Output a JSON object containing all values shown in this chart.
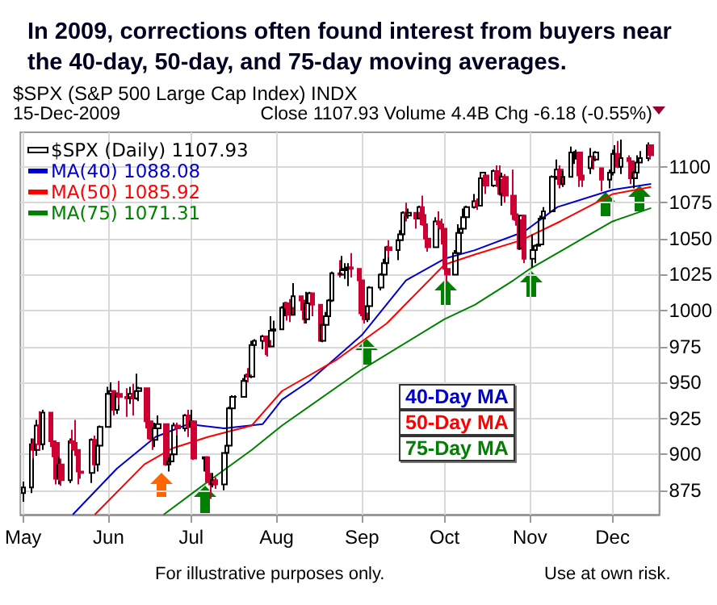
{
  "chart_data": {
    "type": "candlestick",
    "title": "In 2009, corrections often found interest from buyers near the 40-day, 50-day, and 75-day moving averages.",
    "subtitle": "$SPX (S&P 500 Large Cap Index) INDX",
    "annotations": [
      "15-Dec-2009",
      "Close 1107.93  Volume 4.4B  Chg -6.18 (-0.55%)",
      "40-Day MA",
      "50-Day MA",
      "75-Day MA",
      "For illustrative purposes only.",
      "Use at own risk."
    ],
    "xlim": [
      "2009-04-30",
      "2009-12-18"
    ],
    "xticks": [
      {
        "value": "2009-05-01",
        "label": "May"
      },
      {
        "value": "2009-06-01",
        "label": "Jun"
      },
      {
        "value": "2009-07-01",
        "label": "Jul"
      },
      {
        "value": "2009-08-01",
        "label": "Aug"
      },
      {
        "value": "2009-09-01",
        "label": "Sep"
      },
      {
        "value": "2009-10-01",
        "label": "Oct"
      },
      {
        "value": "2009-11-01",
        "label": "Nov"
      },
      {
        "value": "2009-12-01",
        "label": "Dec"
      }
    ],
    "ylim": [
      858,
      1124
    ],
    "yticks": [
      875,
      900,
      925,
      950,
      975,
      1000,
      1025,
      1050,
      1075,
      1100
    ],
    "grid": true,
    "legend": "top left",
    "marker": "none",
    "line_style": "solid",
    "series": [
      {
        "name": "$SPX (Daily) 1107.93",
        "colors": [
          "#000000",
          "#000000",
          "#cc0033",
          "#000000",
          "#cc0033",
          "#000000",
          "#cc0033",
          "#cc0033",
          "#cc0033",
          "#000000",
          "#cc0033",
          "#000000",
          "#cc0033",
          "#cc0033",
          "#cc0033",
          "#cc0033",
          "#000000",
          "#cc0033",
          "#000000",
          "#000000",
          "#000000",
          "#000000",
          "#cc0033",
          "#000000",
          "#cc0033",
          "#cc0033",
          "#000000",
          "#cc0033",
          "#000000",
          "#000000",
          "#cc0033",
          "#cc0033",
          "#cc0033",
          "#000000",
          "#000000",
          "#cc0033",
          "#000000",
          "#000000",
          "#000000",
          "#cc0033",
          "#000000",
          "#cc0033",
          "#000000",
          "#cc0033",
          "#000000",
          "#cc0033",
          "#cc0033",
          "#000000",
          "#cc0033",
          "#000000",
          "#000000",
          "#000000",
          "#000000",
          "#000000",
          "#000000",
          "#000000",
          "#cc0033",
          "#000000",
          "#000000",
          "#000000",
          "#cc0033",
          "#cc0033",
          "#000000",
          "#000000",
          "#000000",
          "#000000",
          "#cc0033",
          "#cc0033",
          "#000000",
          "#cc0033",
          "#cc0033",
          "#000000",
          "#000000",
          "#cc0033",
          "#cc0033",
          "#000000",
          "#000000",
          "#000000",
          "#000000",
          "#cc0033",
          "#000000",
          "#000000",
          "#000000",
          "#cc0033",
          "#cc0033",
          "#cc0033",
          "#cc0033",
          "#000000",
          "#000000",
          "#000000",
          "#000000",
          "#000000",
          "#cc0033",
          "#000000",
          "#000000",
          "#000000",
          "#cc0033",
          "#000000",
          "#cc0033",
          "#000000",
          "#cc0033",
          "#cc0033",
          "#cc0033",
          "#000000",
          "#cc0033",
          "#cc0033",
          "#cc0033",
          "#cc0033",
          "#000000",
          "#000000",
          "#000000",
          "#000000",
          "#000000",
          "#000000",
          "#cc0033",
          "#000000",
          "#000000",
          "#cc0033",
          "#000000",
          "#cc0033",
          "#cc0033",
          "#000000",
          "#cc0033",
          "#cc0033",
          "#cc0033",
          "#cc0033",
          "#000000",
          "#cc0033",
          "#000000",
          "#000000",
          "#000000",
          "#000000",
          "#000000",
          "#000000",
          "#000000",
          "#000000",
          "#cc0033",
          "#000000",
          "#000000",
          "#000000",
          "#000000",
          "#cc0033",
          "#cc0033",
          "#000000",
          "#cc0033",
          "#000000",
          "#cc0033",
          "#000000",
          "#000000",
          "#000000",
          "#cc0033",
          "#000000",
          "#cc0033",
          "#cc0033",
          "#000000",
          "#000000",
          "#000000",
          "#000000",
          "#cc0033"
        ],
        "x": [
          "2009-05-01",
          "2009-05-04",
          "2009-05-05",
          "2009-05-06",
          "2009-05-07",
          "2009-05-08",
          "2009-05-11",
          "2009-05-12",
          "2009-05-13",
          "2009-05-14",
          "2009-05-15",
          "2009-05-18",
          "2009-05-19",
          "2009-05-20",
          "2009-05-21",
          "2009-05-22",
          "2009-05-26",
          "2009-05-27",
          "2009-05-28",
          "2009-05-29",
          "2009-06-01",
          "2009-06-02",
          "2009-06-03",
          "2009-06-04",
          "2009-06-05",
          "2009-06-08",
          "2009-06-09",
          "2009-06-10",
          "2009-06-11",
          "2009-06-12",
          "2009-06-15",
          "2009-06-16",
          "2009-06-17",
          "2009-06-18",
          "2009-06-19",
          "2009-06-22",
          "2009-06-23",
          "2009-06-24",
          "2009-06-25",
          "2009-06-26",
          "2009-06-29",
          "2009-06-30",
          "2009-07-01",
          "2009-07-02",
          "2009-07-06",
          "2009-07-07",
          "2009-07-08",
          "2009-07-09",
          "2009-07-10",
          "2009-07-13",
          "2009-07-14",
          "2009-07-15",
          "2009-07-16",
          "2009-07-17",
          "2009-07-20",
          "2009-07-21",
          "2009-07-22",
          "2009-07-23",
          "2009-07-24",
          "2009-07-27",
          "2009-07-28",
          "2009-07-29",
          "2009-07-30",
          "2009-07-31",
          "2009-08-03",
          "2009-08-04",
          "2009-08-05",
          "2009-08-06",
          "2009-08-07",
          "2009-08-10",
          "2009-08-11",
          "2009-08-12",
          "2009-08-13",
          "2009-08-14",
          "2009-08-17",
          "2009-08-18",
          "2009-08-19",
          "2009-08-20",
          "2009-08-21",
          "2009-08-24",
          "2009-08-25",
          "2009-08-26",
          "2009-08-27",
          "2009-08-28",
          "2009-08-31",
          "2009-09-01",
          "2009-09-02",
          "2009-09-03",
          "2009-09-04",
          "2009-09-08",
          "2009-09-09",
          "2009-09-10",
          "2009-09-11",
          "2009-09-14",
          "2009-09-15",
          "2009-09-16",
          "2009-09-17",
          "2009-09-18",
          "2009-09-21",
          "2009-09-22",
          "2009-09-23",
          "2009-09-24",
          "2009-09-25",
          "2009-09-28",
          "2009-09-29",
          "2009-09-30",
          "2009-10-01",
          "2009-10-02",
          "2009-10-05",
          "2009-10-06",
          "2009-10-07",
          "2009-10-08",
          "2009-10-09",
          "2009-10-12",
          "2009-10-13",
          "2009-10-14",
          "2009-10-15",
          "2009-10-16",
          "2009-10-19",
          "2009-10-20",
          "2009-10-21",
          "2009-10-22",
          "2009-10-23",
          "2009-10-26",
          "2009-10-27",
          "2009-10-28",
          "2009-10-29",
          "2009-10-30",
          "2009-11-02",
          "2009-11-03",
          "2009-11-04",
          "2009-11-05",
          "2009-11-06",
          "2009-11-09",
          "2009-11-10",
          "2009-11-11",
          "2009-11-12",
          "2009-11-13",
          "2009-11-16",
          "2009-11-17",
          "2009-11-18",
          "2009-11-19",
          "2009-11-20",
          "2009-11-23",
          "2009-11-24",
          "2009-11-25",
          "2009-11-27",
          "2009-11-30",
          "2009-12-01",
          "2009-12-02",
          "2009-12-03",
          "2009-12-04",
          "2009-12-07",
          "2009-12-08",
          "2009-12-09",
          "2009-12-10",
          "2009-12-11",
          "2009-12-14",
          "2009-12-15"
        ],
        "ohlc": [
          [
            873,
            881,
            867,
            877
          ],
          [
            877,
            911,
            873,
            907
          ],
          [
            907,
            911,
            897,
            903
          ],
          [
            903,
            924,
            899,
            920
          ],
          [
            920,
            930,
            903,
            907
          ],
          [
            907,
            931,
            903,
            929
          ],
          [
            929,
            929,
            905,
            909
          ],
          [
            909,
            915,
            898,
            908
          ],
          [
            908,
            908,
            879,
            883
          ],
          [
            883,
            898,
            879,
            893
          ],
          [
            893,
            897,
            878,
            882
          ],
          [
            882,
            911,
            880,
            909
          ],
          [
            909,
            917,
            903,
            908
          ],
          [
            908,
            924,
            899,
            903
          ],
          [
            903,
            903,
            879,
            888
          ],
          [
            888,
            896,
            883,
            887
          ],
          [
            887,
            911,
            880,
            910
          ],
          [
            910,
            913,
            891,
            893
          ],
          [
            893,
            909,
            888,
            906
          ],
          [
            906,
            920,
            900,
            919
          ],
          [
            919,
            947,
            919,
            942
          ],
          [
            942,
            950,
            938,
            944
          ],
          [
            944,
            944,
            927,
            931
          ],
          [
            931,
            943,
            928,
            942
          ],
          [
            942,
            951,
            934,
            940
          ],
          [
            940,
            946,
            926,
            939
          ],
          [
            939,
            947,
            935,
            942
          ],
          [
            942,
            949,
            927,
            939
          ],
          [
            939,
            956,
            938,
            944
          ],
          [
            944,
            947,
            937,
            946
          ],
          [
            946,
            946,
            918,
            923
          ],
          [
            923,
            929,
            910,
            911
          ],
          [
            911,
            918,
            903,
            910
          ],
          [
            910,
            922,
            905,
            918
          ],
          [
            918,
            927,
            915,
            921
          ],
          [
            921,
            921,
            892,
            893
          ],
          [
            893,
            898,
            888,
            895
          ],
          [
            895,
            911,
            895,
            900
          ],
          [
            900,
            922,
            896,
            920
          ],
          [
            920,
            922,
            913,
            918
          ],
          [
            918,
            928,
            916,
            927
          ],
          [
            927,
            931,
            912,
            919
          ],
          [
            919,
            931,
            917,
            923
          ],
          [
            923,
            923,
            896,
            897
          ],
          [
            897,
            898,
            888,
            898
          ],
          [
            898,
            898,
            880,
            881
          ],
          [
            881,
            887,
            869,
            879
          ],
          [
            879,
            887,
            877,
            882
          ],
          [
            882,
            884,
            876,
            879
          ],
          [
            879,
            901,
            875,
            901
          ],
          [
            901,
            907,
            898,
            906
          ],
          [
            906,
            933,
            906,
            932
          ],
          [
            932,
            941,
            928,
            940
          ],
          [
            940,
            941,
            935,
            940
          ],
          [
            940,
            953,
            940,
            951
          ],
          [
            951,
            956,
            945,
            955
          ],
          [
            955,
            960,
            950,
            954
          ],
          [
            954,
            979,
            953,
            976
          ],
          [
            976,
            980,
            971,
            979
          ],
          [
            979,
            983,
            973,
            982
          ],
          [
            982,
            982,
            969,
            979
          ],
          [
            979,
            981,
            968,
            975
          ],
          [
            975,
            996,
            975,
            986
          ],
          [
            986,
            993,
            983,
            987
          ],
          [
            987,
            1003,
            987,
            1002
          ],
          [
            1002,
            1006,
            996,
            1005
          ],
          [
            1005,
            1006,
            993,
            1002
          ],
          [
            1002,
            1008,
            992,
            997
          ],
          [
            997,
            1019,
            997,
            1010
          ],
          [
            1010,
            1010,
            1000,
            1007
          ],
          [
            1007,
            1007,
            991,
            994
          ],
          [
            994,
            1013,
            991,
            1005
          ],
          [
            1005,
            1013,
            1003,
            1012
          ],
          [
            1012,
            1012,
            996,
            1004
          ],
          [
            1004,
            1004,
            979,
            979
          ],
          [
            979,
            991,
            978,
            990
          ],
          [
            990,
            999,
            980,
            996
          ],
          [
            996,
            1008,
            991,
            1007
          ],
          [
            1007,
            1027,
            1006,
            1026
          ],
          [
            1026,
            1035,
            1023,
            1025
          ],
          [
            1025,
            1038,
            1025,
            1028
          ],
          [
            1028,
            1033,
            1022,
            1029
          ],
          [
            1029,
            1033,
            1017,
            1030
          ],
          [
            1030,
            1040,
            1023,
            1029
          ],
          [
            1029,
            1029,
            1017,
            1021
          ],
          [
            1021,
            1028,
            996,
            998
          ],
          [
            998,
            1001,
            991,
            994
          ],
          [
            994,
            1004,
            992,
            1003
          ],
          [
            1003,
            1017,
            1001,
            1016
          ],
          [
            1016,
            1026,
            1014,
            1025
          ],
          [
            1025,
            1036,
            1023,
            1033
          ],
          [
            1033,
            1045,
            1029,
            1044
          ],
          [
            1044,
            1049,
            1037,
            1042
          ],
          [
            1042,
            1050,
            1035,
            1049
          ],
          [
            1049,
            1056,
            1043,
            1053
          ],
          [
            1053,
            1069,
            1053,
            1068
          ],
          [
            1068,
            1075,
            1062,
            1066
          ],
          [
            1066,
            1071,
            1064,
            1068
          ],
          [
            1068,
            1068,
            1057,
            1064
          ],
          [
            1064,
            1073,
            1064,
            1072
          ],
          [
            1072,
            1080,
            1059,
            1060
          ],
          [
            1060,
            1067,
            1045,
            1050
          ],
          [
            1050,
            1056,
            1041,
            1044
          ],
          [
            1044,
            1065,
            1044,
            1062
          ],
          [
            1062,
            1069,
            1057,
            1060
          ],
          [
            1060,
            1064,
            1046,
            1057
          ],
          [
            1057,
            1057,
            1029,
            1029
          ],
          [
            1029,
            1030,
            1020,
            1025
          ],
          [
            1025,
            1042,
            1025,
            1040
          ],
          [
            1040,
            1060,
            1040,
            1054
          ],
          [
            1054,
            1058,
            1051,
            1057
          ],
          [
            1057,
            1071,
            1057,
            1065
          ],
          [
            1065,
            1073,
            1063,
            1072
          ],
          [
            1072,
            1081,
            1071,
            1076
          ],
          [
            1076,
            1078,
            1070,
            1073
          ],
          [
            1073,
            1094,
            1073,
            1092
          ],
          [
            1092,
            1096,
            1086,
            1096
          ],
          [
            1094,
            1094,
            1081,
            1087
          ],
          [
            1087,
            1098,
            1086,
            1097
          ],
          [
            1097,
            1101,
            1086,
            1091
          ],
          [
            1091,
            1101,
            1080,
            1081
          ],
          [
            1081,
            1096,
            1073,
            1093
          ],
          [
            1093,
            1095,
            1075,
            1080
          ],
          [
            1080,
            1098,
            1063,
            1067
          ],
          [
            1067,
            1073,
            1059,
            1063
          ],
          [
            1063,
            1063,
            1042,
            1043
          ],
          [
            1043,
            1066,
            1043,
            1066
          ],
          [
            1066,
            1066,
            1033,
            1036
          ],
          [
            1036,
            1053,
            1030,
            1042
          ],
          [
            1042,
            1046,
            1033,
            1045
          ],
          [
            1045,
            1061,
            1045,
            1046
          ],
          [
            1046,
            1066,
            1046,
            1064
          ],
          [
            1064,
            1072,
            1060,
            1069
          ],
          [
            1069,
            1094,
            1069,
            1093
          ],
          [
            1093,
            1096,
            1087,
            1093
          ],
          [
            1093,
            1105,
            1091,
            1098
          ],
          [
            1098,
            1101,
            1085,
            1088
          ],
          [
            1088,
            1097,
            1086,
            1093
          ],
          [
            1093,
            1114,
            1093,
            1110
          ],
          [
            1110,
            1111,
            1102,
            1110
          ],
          [
            1110,
            1112,
            1105,
            1110
          ],
          [
            1110,
            1110,
            1086,
            1094
          ],
          [
            1094,
            1094,
            1086,
            1091
          ],
          [
            1099,
            1113,
            1095,
            1107
          ],
          [
            1107,
            1108,
            1098,
            1105
          ],
          [
            1105,
            1111,
            1104,
            1110
          ],
          [
            1099,
            1099,
            1083,
            1091
          ],
          [
            1091,
            1098,
            1085,
            1096
          ],
          [
            1096,
            1112,
            1094,
            1109
          ],
          [
            1109,
            1115,
            1105,
            1109
          ],
          [
            1109,
            1118,
            1099,
            1100
          ],
          [
            1100,
            1119,
            1095,
            1106
          ],
          [
            1106,
            1108,
            1100,
            1104
          ],
          [
            1104,
            1104,
            1088,
            1092
          ],
          [
            1092,
            1097,
            1085,
            1096
          ],
          [
            1096,
            1108,
            1096,
            1103
          ],
          [
            1103,
            1111,
            1103,
            1106
          ],
          [
            1106,
            1117,
            1104,
            1115
          ],
          [
            1115,
            1115,
            1105,
            1108
          ]
        ]
      },
      {
        "type": "line",
        "name": "MA(40) 1088.08",
        "color": "#0000cc",
        "x": [
          "2009-05-19",
          "2009-06-04",
          "2009-06-18",
          "2009-06-30",
          "2009-07-13",
          "2009-07-27",
          "2009-08-03",
          "2009-08-13",
          "2009-09-01",
          "2009-09-17",
          "2009-10-01",
          "2009-10-12",
          "2009-10-30",
          "2009-11-11",
          "2009-12-01",
          "2009-12-15"
        ],
        "values": [
          858,
          890,
          912,
          921,
          918,
          921,
          938,
          951,
          983,
          1021,
          1036,
          1042,
          1055,
          1072,
          1084,
          1088.08
        ]
      },
      {
        "type": "line",
        "name": "MA(50) 1085.92",
        "color": "#ff0000",
        "x": [
          "2009-05-27",
          "2009-06-14",
          "2009-06-24",
          "2009-07-07",
          "2009-07-23",
          "2009-08-03",
          "2009-08-23",
          "2009-09-10",
          "2009-10-01",
          "2009-10-12",
          "2009-10-29",
          "2009-11-12",
          "2009-12-01",
          "2009-12-15"
        ],
        "values": [
          858,
          893,
          904,
          912,
          920,
          944,
          966,
          991,
          1032,
          1039,
          1049,
          1062,
          1081,
          1085.92
        ]
      },
      {
        "type": "line",
        "name": "MA(75) 1071.31",
        "color": "#008000",
        "x": [
          "2009-06-21",
          "2009-07-05",
          "2009-07-23",
          "2009-08-03",
          "2009-09-01",
          "2009-10-01",
          "2009-10-12",
          "2009-10-26",
          "2009-11-01",
          "2009-12-01",
          "2009-12-15"
        ],
        "values": [
          858,
          878,
          903,
          920,
          959,
          994,
          1004,
          1021,
          1029,
          1062,
          1071.31
        ]
      }
    ]
  }
}
